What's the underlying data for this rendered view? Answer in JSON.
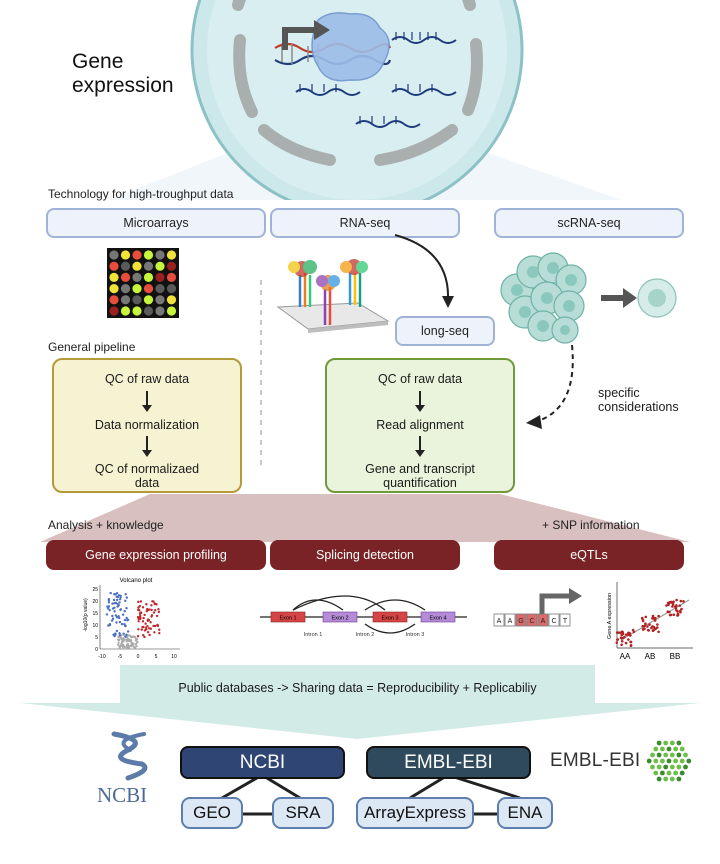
{
  "title": {
    "line1": "Gene",
    "line2": "expression"
  },
  "technology": {
    "section_label": "Technology for high-troughput data",
    "microarrays": "Microarrays",
    "rnaseq": "RNA-seq",
    "scrnaseq": "scRNA-seq",
    "longseq": "long-seq"
  },
  "pipeline": {
    "section_label": "General pipeline",
    "left_steps": [
      "QC of raw data",
      "Data normalization",
      "QC of normalizaed data"
    ],
    "right_steps": [
      "QC of raw data",
      "Read alignment",
      "Gene and transcript quantification"
    ],
    "specific": "specific considerations"
  },
  "analysis": {
    "section_label": "Analysis + knowledge",
    "snp_label": "+ SNP information",
    "profiling": "Gene expression profiling",
    "splicing": "Splicing detection",
    "eqtls": "eQTLs"
  },
  "volcano": {
    "title": "Volcano plot",
    "ylabel": "-log10(p value)",
    "yticks": [
      "25",
      "20",
      "15",
      "10",
      "5",
      "0"
    ],
    "xticks": [
      "-10",
      "-5",
      "0",
      "5",
      "10"
    ]
  },
  "splicing_fig": {
    "exons": [
      "Exon 1",
      "Exon 2",
      "Exon 3",
      "Exon 4"
    ],
    "introns": [
      "Intron 1",
      "Intron 2",
      "Intron 3"
    ]
  },
  "eqtl_fig": {
    "ylabel": "Gene A expression",
    "genotypes": [
      "AA",
      "AB",
      "BB"
    ],
    "snp_letters": [
      "A",
      "A",
      "G",
      "C",
      "A",
      "C",
      "T"
    ]
  },
  "databases": {
    "banner": "Public databases ->  Sharing data = Reproducibility + Replicabiliy",
    "ncbi_logo": "NCBI",
    "ncbi": "NCBI",
    "embl": "EMBL-EBI",
    "embl_logo": "EMBL-EBI",
    "geo": "GEO",
    "sra": "SRA",
    "arrayexpress": "ArrayExpress",
    "ena": "ENA"
  },
  "colors": {
    "pill_border": "#9fb3d6",
    "pill_fill": "#eef3fb",
    "analysis": "#7a2326",
    "pipeline_left_border": "#b59a3c",
    "pipeline_left_fill": "#f6f3d2",
    "pipeline_right_border": "#6f9a3a",
    "pipeline_right_fill": "#eaf4dc",
    "banner": "#d2ebe7",
    "ncbi": "#2f4675",
    "embl": "#2f4a5c"
  }
}
